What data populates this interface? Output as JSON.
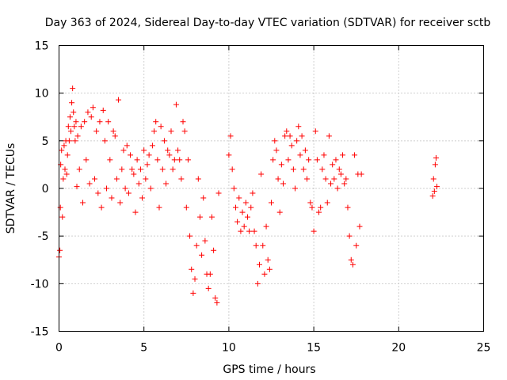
{
  "chart_data": {
    "type": "scatter",
    "title": "Day 363 of 2024, Sidereal Day-to-day VTEC variation (SDTVAR) for receiver sctb",
    "xlabel": "GPS time / hours",
    "ylabel": "SDTVAR / TECUs",
    "xlim": [
      0,
      25
    ],
    "ylim": [
      -15,
      15
    ],
    "xticks": [
      0,
      5,
      10,
      15,
      20,
      25
    ],
    "yticks": [
      -15,
      -10,
      -5,
      0,
      5,
      10,
      15
    ],
    "xtick_labels": [
      "0",
      "5",
      "10",
      "15",
      "20",
      "25"
    ],
    "ytick_labels": [
      "-15",
      "-10",
      "-5",
      "0",
      "5",
      "10",
      "15"
    ],
    "grid": true,
    "marker": "+",
    "color": "#ff0000",
    "series": [
      {
        "name": "SDTVAR",
        "points": [
          [
            0.0,
            -7.2
          ],
          [
            0.05,
            -6.5
          ],
          [
            0.08,
            -2.0
          ],
          [
            0.1,
            2.5
          ],
          [
            0.15,
            4.0
          ],
          [
            0.2,
            -3.0
          ],
          [
            0.25,
            1.0
          ],
          [
            0.3,
            4.5
          ],
          [
            0.35,
            2.0
          ],
          [
            0.4,
            5.0
          ],
          [
            0.45,
            1.5
          ],
          [
            0.5,
            3.5
          ],
          [
            0.55,
            6.5
          ],
          [
            0.6,
            5.0
          ],
          [
            0.65,
            7.5
          ],
          [
            0.7,
            6.0
          ],
          [
            0.75,
            9.0
          ],
          [
            0.8,
            10.5
          ],
          [
            0.85,
            8.0
          ],
          [
            0.9,
            6.5
          ],
          [
            0.95,
            5.0
          ],
          [
            1.0,
            7.0
          ],
          [
            1.05,
            0.2
          ],
          [
            1.1,
            5.5
          ],
          [
            1.2,
            2.0
          ],
          [
            1.3,
            6.5
          ],
          [
            1.4,
            -1.5
          ],
          [
            1.5,
            7.0
          ],
          [
            1.6,
            3.0
          ],
          [
            1.7,
            8.0
          ],
          [
            1.8,
            0.5
          ],
          [
            1.9,
            7.5
          ],
          [
            2.0,
            8.5
          ],
          [
            2.1,
            1.0
          ],
          [
            2.2,
            6.0
          ],
          [
            2.3,
            -0.5
          ],
          [
            2.4,
            7.0
          ],
          [
            2.5,
            -2.0
          ],
          [
            2.6,
            8.2
          ],
          [
            2.7,
            5.0
          ],
          [
            2.8,
            0.0
          ],
          [
            2.9,
            7.0
          ],
          [
            3.0,
            3.0
          ],
          [
            3.1,
            -1.0
          ],
          [
            3.2,
            6.0
          ],
          [
            3.3,
            5.5
          ],
          [
            3.4,
            1.0
          ],
          [
            3.5,
            9.3
          ],
          [
            3.6,
            -1.5
          ],
          [
            3.7,
            2.0
          ],
          [
            3.8,
            4.0
          ],
          [
            3.9,
            0.0
          ],
          [
            4.0,
            4.5
          ],
          [
            4.1,
            -0.5
          ],
          [
            4.2,
            3.5
          ],
          [
            4.3,
            2.0
          ],
          [
            4.4,
            1.5
          ],
          [
            4.5,
            -2.5
          ],
          [
            4.6,
            3.0
          ],
          [
            4.7,
            0.5
          ],
          [
            4.8,
            2.0
          ],
          [
            4.9,
            -1.0
          ],
          [
            5.0,
            4.0
          ],
          [
            5.1,
            1.0
          ],
          [
            5.2,
            2.5
          ],
          [
            5.3,
            3.5
          ],
          [
            5.4,
            0.0
          ],
          [
            5.5,
            4.5
          ],
          [
            5.6,
            6.0
          ],
          [
            5.7,
            7.0
          ],
          [
            5.8,
            3.0
          ],
          [
            5.9,
            -2.0
          ],
          [
            6.0,
            6.5
          ],
          [
            6.1,
            2.0
          ],
          [
            6.2,
            5.0
          ],
          [
            6.3,
            0.5
          ],
          [
            6.4,
            4.0
          ],
          [
            6.5,
            3.5
          ],
          [
            6.6,
            6.0
          ],
          [
            6.7,
            2.0
          ],
          [
            6.8,
            3.0
          ],
          [
            6.9,
            8.8
          ],
          [
            7.0,
            4.0
          ],
          [
            7.1,
            3.0
          ],
          [
            7.2,
            1.0
          ],
          [
            7.3,
            7.0
          ],
          [
            7.4,
            6.0
          ],
          [
            7.5,
            -2.0
          ],
          [
            7.6,
            3.0
          ],
          [
            7.7,
            -5.0
          ],
          [
            7.8,
            -8.5
          ],
          [
            7.9,
            -11.0
          ],
          [
            8.0,
            -9.5
          ],
          [
            8.1,
            -6.0
          ],
          [
            8.2,
            1.0
          ],
          [
            8.3,
            -3.0
          ],
          [
            8.4,
            -7.0
          ],
          [
            8.5,
            -1.0
          ],
          [
            8.6,
            -5.5
          ],
          [
            8.7,
            -9.0
          ],
          [
            8.8,
            -10.5
          ],
          [
            8.9,
            -9.0
          ],
          [
            9.0,
            -3.0
          ],
          [
            9.1,
            -6.5
          ],
          [
            9.2,
            -11.5
          ],
          [
            9.3,
            -12.0
          ],
          [
            9.4,
            -0.5
          ],
          [
            10.0,
            3.5
          ],
          [
            10.1,
            5.5
          ],
          [
            10.2,
            2.0
          ],
          [
            10.3,
            0.0
          ],
          [
            10.4,
            -2.0
          ],
          [
            10.5,
            -3.5
          ],
          [
            10.6,
            -1.0
          ],
          [
            10.7,
            -4.5
          ],
          [
            10.8,
            -2.5
          ],
          [
            10.9,
            -4.0
          ],
          [
            11.0,
            -1.5
          ],
          [
            11.1,
            -3.0
          ],
          [
            11.2,
            -4.5
          ],
          [
            11.3,
            -2.0
          ],
          [
            11.4,
            -0.5
          ],
          [
            11.5,
            -4.5
          ],
          [
            11.6,
            -6.0
          ],
          [
            11.7,
            -10.0
          ],
          [
            11.8,
            -8.0
          ],
          [
            11.9,
            1.5
          ],
          [
            12.0,
            -6.0
          ],
          [
            12.1,
            -9.0
          ],
          [
            12.2,
            -4.0
          ],
          [
            12.3,
            -7.5
          ],
          [
            12.4,
            -8.5
          ],
          [
            12.5,
            -1.5
          ],
          [
            12.6,
            3.0
          ],
          [
            12.7,
            5.0
          ],
          [
            12.8,
            4.0
          ],
          [
            12.9,
            1.0
          ],
          [
            13.0,
            -2.5
          ],
          [
            13.1,
            2.5
          ],
          [
            13.2,
            0.5
          ],
          [
            13.3,
            5.5
          ],
          [
            13.4,
            6.0
          ],
          [
            13.5,
            3.0
          ],
          [
            13.6,
            5.5
          ],
          [
            13.7,
            4.5
          ],
          [
            13.8,
            2.0
          ],
          [
            13.9,
            0.0
          ],
          [
            14.0,
            5.0
          ],
          [
            14.1,
            6.5
          ],
          [
            14.2,
            3.5
          ],
          [
            14.3,
            5.5
          ],
          [
            14.4,
            2.0
          ],
          [
            14.5,
            4.0
          ],
          [
            14.6,
            1.0
          ],
          [
            14.7,
            3.0
          ],
          [
            14.8,
            -1.5
          ],
          [
            14.9,
            -2.0
          ],
          [
            15.0,
            -4.5
          ],
          [
            15.1,
            6.0
          ],
          [
            15.2,
            3.0
          ],
          [
            15.3,
            -2.5
          ],
          [
            15.4,
            -2.0
          ],
          [
            15.5,
            2.0
          ],
          [
            15.6,
            3.5
          ],
          [
            15.7,
            1.0
          ],
          [
            15.8,
            -1.5
          ],
          [
            15.9,
            5.5
          ],
          [
            16.0,
            0.5
          ],
          [
            16.1,
            2.5
          ],
          [
            16.2,
            1.0
          ],
          [
            16.3,
            3.0
          ],
          [
            16.4,
            0.0
          ],
          [
            16.5,
            2.0
          ],
          [
            16.6,
            1.5
          ],
          [
            16.7,
            3.5
          ],
          [
            16.8,
            0.5
          ],
          [
            16.9,
            1.0
          ],
          [
            17.0,
            -2.0
          ],
          [
            17.1,
            -5.0
          ],
          [
            17.2,
            -7.5
          ],
          [
            17.3,
            -8.0
          ],
          [
            17.4,
            3.5
          ],
          [
            17.5,
            -6.0
          ],
          [
            17.6,
            1.5
          ],
          [
            17.7,
            -4.0
          ],
          [
            17.8,
            1.5
          ],
          [
            22.0,
            -0.8
          ],
          [
            22.05,
            1.0
          ],
          [
            22.1,
            -0.3
          ],
          [
            22.15,
            2.5
          ],
          [
            22.2,
            3.2
          ],
          [
            22.25,
            0.2
          ]
        ]
      }
    ]
  }
}
